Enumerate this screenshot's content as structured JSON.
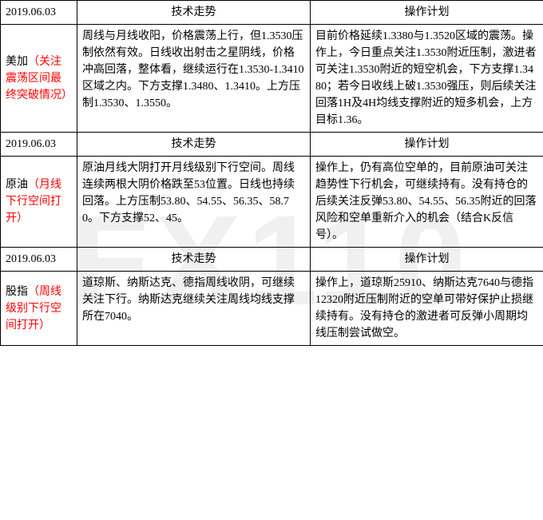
{
  "watermark": "FX110",
  "colors": {
    "text": "#000000",
    "highlight": "#FF0000",
    "border": "#000000",
    "background": "#ffffff",
    "watermark": "rgba(0,0,0,0.06)"
  },
  "headers": {
    "tech": "技术走势",
    "plan": "操作计划"
  },
  "sections": [
    {
      "date": "2019.06.03",
      "label_black": "美加",
      "label_red": "（关注震荡区间最终突破情况）",
      "tech": "周线与月线收阳，价格震荡上行，但1.3530压制依然有效。日线收出射击之星阴线，价格冲高回落，整体看，继续运行在1.3530-1.3410区域之内。下方支撑1.3480、1.3410。上方压制1.3530、1.3550。",
      "plan": "目前价格延续1.3380与1.3520区域的震荡。操作上，今日重点关注1.3530附近压制，激进者可关注1.3530附近的短空机会，下方支撑1.3480；若今日收线上破1.3530强压，则后续关注回落1H及4H均线支撑附近的短多机会，上方目标1.36。"
    },
    {
      "date": "2019.06.03",
      "label_black": "原油",
      "label_red": "（月线下行空间打开）",
      "tech": "原油月线大阴打开月线级别下行空间。周线连续两根大阴价格跌至53位置。日线也持续回落。上方压制53.80、54.55、56.35、58.70。下方支撑52、45。",
      "plan": "操作上，仍有高位空单的，目前原油可关注趋势性下行机会，可继续持有。没有持仓的后续关注反弹53.80、54.55、56.35附近的回落风险和空单重新介入的机会（结合K反信号）。"
    },
    {
      "date": "2019.06.03",
      "label_black": "股指",
      "label_red": "（周线级别下行空间打开）",
      "tech": "道琼斯、纳斯达克、德指周线收阴，可继续关注下行。纳斯达克继续关注周线均线支撑所在7040。",
      "plan": "操作上，道琼斯25910、纳斯达克7640与德指12320附近压制附近的空单可带好保护止损继续持有。没有持仓的激进者可反弹小周期均线压制尝试做空。"
    }
  ]
}
